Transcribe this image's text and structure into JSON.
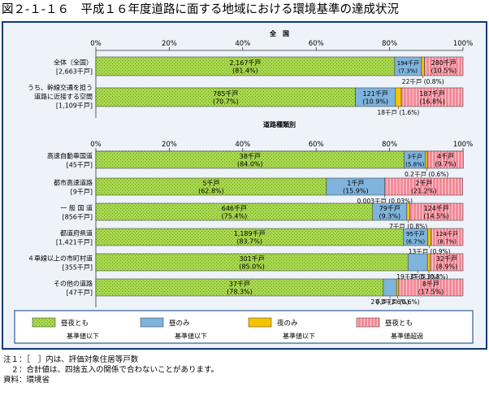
{
  "title": "図２-１-１６　平成１６年度道路に面する地域における環境基準の達成状況",
  "colors": {
    "green": "#a8d84e",
    "blue": "#7fb4dc",
    "yellow": "#f5c400",
    "pink": "#f48a98",
    "frame": "#0a3a7c",
    "panel": "#eef3fa",
    "text": "#000000"
  },
  "chart_data": {
    "type": "bar",
    "stacked": true,
    "orientation": "horizontal",
    "xlim": [
      0,
      100
    ],
    "xticks": [
      "0%",
      "20%",
      "40%",
      "60%",
      "80%",
      "100%"
    ],
    "grid": false,
    "sections": [
      {
        "label": "全　国",
        "rows": [
          {
            "label": "全体（全国）",
            "sublabel": "[2,663千戸]",
            "values": [
              81.4,
              7.3,
              0.8,
              10.5
            ],
            "texts": [
              [
                "2,167千戸",
                "(81.4%)"
              ],
              [
                "194千戸",
                "(7.3%)"
              ],
              [
                "22千戸 (0.8%)"
              ],
              [
                "280千戸",
                "(10.5%)"
              ]
            ]
          },
          {
            "label": "うち、幹線交通を担う",
            "label2": "道路に近接する空間",
            "sublabel": "[1,109千戸]",
            "values": [
              70.7,
              10.9,
              1.6,
              16.8
            ],
            "texts": [
              [
                "785千戸",
                "(70.7%)"
              ],
              [
                "121千戸",
                "(10.9%)"
              ],
              [
                "18千戸 (1.6%)"
              ],
              [
                "187千戸",
                "(16.8%)"
              ]
            ]
          }
        ]
      },
      {
        "label": "道路種類別",
        "rows": [
          {
            "label": "高速自動車国道",
            "sublabel": "[45千戸]",
            "values": [
              84.0,
              5.8,
              0.6,
              9.7
            ],
            "texts": [
              [
                "38千戸",
                "(84.0%)"
              ],
              [
                "3千戸",
                "(5.8%)"
              ],
              [
                "0.2千戸 (0.6%)"
              ],
              [
                "4千戸",
                "(9.7%)"
              ]
            ]
          },
          {
            "label": "都市高速道路",
            "sublabel": "[9千戸]",
            "values": [
              62.8,
              15.9,
              0.03,
              21.2
            ],
            "texts": [
              [
                "5千戸",
                "(62.8%)"
              ],
              [
                "1千戸",
                "(15.9%)"
              ],
              [
                "0.003千戸 (0.03%)"
              ],
              [
                "2千戸",
                "(21.2%)"
              ]
            ]
          },
          {
            "label": "一 般 国 道",
            "sublabel": "[856千戸]",
            "values": [
              75.4,
              9.3,
              0.8,
              14.5
            ],
            "texts": [
              [
                "646千戸",
                "(75.4%)"
              ],
              [
                "79千戸",
                "(9.3%)"
              ],
              [
                "7千戸 (0.8%)"
              ],
              [
                "124千戸",
                "(14.5%)"
              ]
            ]
          },
          {
            "label": "都道府県道",
            "sublabel": "[1,421千戸]",
            "values": [
              83.7,
              6.7,
              0.9,
              8.7
            ],
            "texts": [
              [
                "1,189千戸",
                "(83.7%)"
              ],
              [
                "95千戸",
                "(6.7%)"
              ],
              [
                "13千戸 (0.9%)"
              ],
              [
                "124千戸",
                "(8.7%)"
              ]
            ]
          },
          {
            "label": "４車線以上の市町村道",
            "sublabel": "[355千戸]",
            "values": [
              85.0,
              5.3,
              0.8,
              8.9
            ],
            "texts": [
              [
                "301千戸",
                "(85.0%)"
              ],
              [
                "19千戸",
                "(5.3%)"
              ],
              [
                "3千戸 (0.8%)"
              ],
              [
                "32千戸",
                "(8.9%)"
              ]
            ]
          },
          {
            "label": "その他の道路",
            "sublabel": "[47千戸]",
            "values": [
              78.3,
              3.6,
              0.6,
              17.5
            ],
            "texts": [
              [
                "37千戸",
                "(78.3%)"
              ],
              [
                "2千戸 (3.6%)"
              ],
              [
                "0.3千戸 (0.6%)"
              ],
              [
                "8千戸",
                "(17.5%)"
              ]
            ]
          }
        ]
      }
    ],
    "series": [
      {
        "name": "昼夜とも",
        "sub": "基準値以下"
      },
      {
        "name": "昼のみ",
        "sub": "基準値以下"
      },
      {
        "name": "夜のみ",
        "sub": "基準値以下"
      },
      {
        "name": "昼夜とも",
        "sub": "基準値超過"
      }
    ],
    "legend": "bottom"
  },
  "notes": [
    "注１：［　］内は、評価対象住居等戸数",
    "　２：合計値は、四捨五入の関係で合わないことがあります。",
    "資料：環境省"
  ]
}
